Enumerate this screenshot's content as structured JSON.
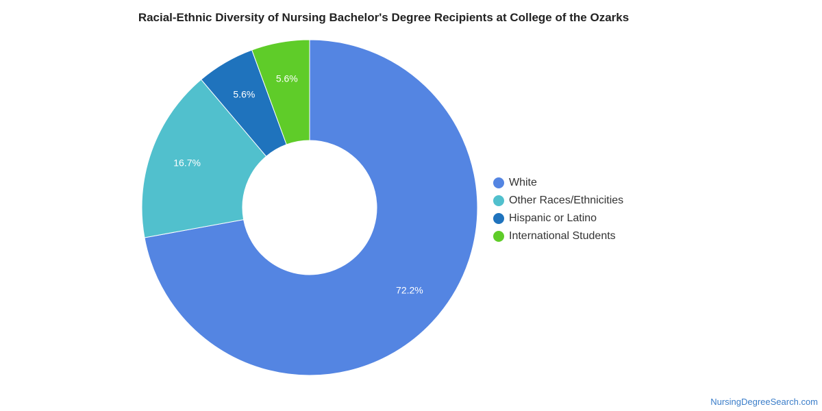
{
  "chart_data": {
    "type": "pie",
    "donut": true,
    "title": "Racial-Ethnic Diversity of Nursing Bachelor's Degree Recipients at College of the Ozarks",
    "legend_position": "right",
    "slices": [
      {
        "name": "White",
        "value": 72.2,
        "label": "72.2%",
        "color": "#5485e2"
      },
      {
        "name": "Other Races/Ethnicities",
        "value": 16.7,
        "label": "16.7%",
        "color": "#51c0cd"
      },
      {
        "name": "Hispanic or Latino",
        "value": 5.6,
        "label": "5.6%",
        "color": "#1f73bd"
      },
      {
        "name": "International Students",
        "value": 5.6,
        "label": "5.6%",
        "color": "#5fcc29"
      }
    ]
  },
  "credit": "NursingDegreeSearch.com"
}
